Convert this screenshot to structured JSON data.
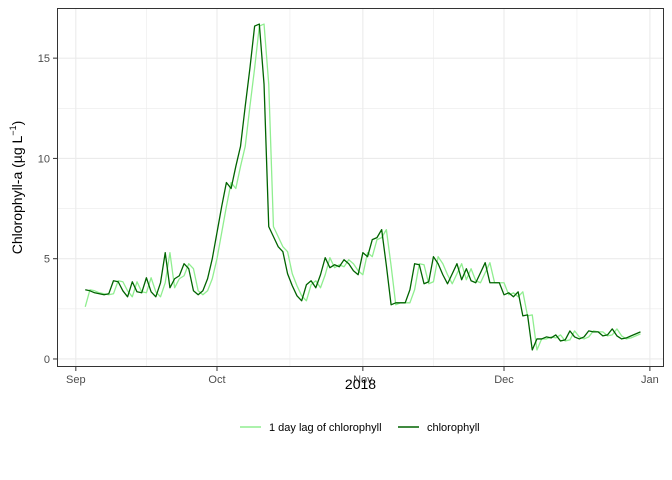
{
  "chart_data": {
    "type": "line",
    "title": "",
    "xlabel": "2018",
    "ylabel": "Chlorophyll-a (µg L",
    "ylabel_sup": "−1",
    "ylabel_close": ")",
    "x_ticks": [
      {
        "date": "2018-09-01",
        "label": "Sep"
      },
      {
        "date": "2018-10-01",
        "label": "Oct"
      },
      {
        "date": "2018-11-01",
        "label": "Nov"
      },
      {
        "date": "2018-12-01",
        "label": "Dec"
      },
      {
        "date": "2019-01-01",
        "label": "Jan"
      }
    ],
    "y_ticks": [
      0,
      5,
      10,
      15
    ],
    "xlim": [
      "2018-08-28",
      "2019-01-04"
    ],
    "ylim": [
      -0.4,
      17.5
    ],
    "grid": true,
    "legend_position": "bottom",
    "series": [
      {
        "name": "1 day lag of chlorophyll",
        "color": "#90ee90",
        "start_date": "2018-09-03",
        "values": [
          2.6,
          3.45,
          3.4,
          3.3,
          3.25,
          3.2,
          3.25,
          3.9,
          3.85,
          3.4,
          3.1,
          3.85,
          3.35,
          3.3,
          4.05,
          3.35,
          3.1,
          3.8,
          5.3,
          3.55,
          4.0,
          4.15,
          4.75,
          4.5,
          3.4,
          3.2,
          3.4,
          4.0,
          5.0,
          6.3,
          7.6,
          8.8,
          8.5,
          9.6,
          10.6,
          12.6,
          14.5,
          16.6,
          16.7,
          13.7,
          6.6,
          6.1,
          5.6,
          5.35,
          4.25,
          3.65,
          3.15,
          2.9,
          3.7,
          3.9,
          3.55,
          4.2,
          5.05,
          4.55,
          4.7,
          4.6,
          4.95,
          4.75,
          4.4,
          4.2,
          5.3,
          5.1,
          5.95,
          6.05,
          6.45,
          4.65,
          2.7,
          2.8,
          2.8,
          2.8,
          3.45,
          4.75,
          4.7,
          3.75,
          3.85,
          5.1,
          4.75,
          4.2,
          3.75,
          4.25,
          4.75,
          3.95,
          4.5,
          3.9,
          3.8,
          4.3,
          4.8,
          3.8,
          3.8,
          3.8,
          3.2,
          3.3,
          3.1,
          3.35,
          2.15,
          2.2,
          0.45,
          1.0,
          1.0,
          1.1,
          1.05,
          1.2,
          0.9,
          0.95,
          1.4,
          1.1,
          1.0,
          1.1,
          1.4,
          1.35,
          1.35,
          1.15,
          1.2,
          1.5,
          1.15,
          1.0,
          1.05,
          1.15,
          1.25
        ]
      },
      {
        "name": "chlorophyll",
        "color": "#006400",
        "start_date": "2018-09-03",
        "values": [
          3.45,
          3.4,
          3.3,
          3.25,
          3.2,
          3.25,
          3.9,
          3.85,
          3.4,
          3.1,
          3.85,
          3.35,
          3.3,
          4.05,
          3.35,
          3.1,
          3.8,
          5.3,
          3.55,
          4.0,
          4.15,
          4.75,
          4.5,
          3.4,
          3.2,
          3.4,
          4.0,
          5.0,
          6.3,
          7.6,
          8.8,
          8.5,
          9.6,
          10.6,
          12.6,
          14.5,
          16.6,
          16.7,
          13.7,
          6.6,
          6.1,
          5.6,
          5.35,
          4.25,
          3.65,
          3.15,
          2.9,
          3.7,
          3.9,
          3.55,
          4.2,
          5.05,
          4.55,
          4.7,
          4.6,
          4.95,
          4.75,
          4.4,
          4.2,
          5.3,
          5.1,
          5.95,
          6.05,
          6.45,
          4.65,
          2.7,
          2.8,
          2.8,
          2.8,
          3.45,
          4.75,
          4.7,
          3.75,
          3.85,
          5.1,
          4.75,
          4.2,
          3.75,
          4.25,
          4.75,
          3.95,
          4.5,
          3.9,
          3.8,
          4.3,
          4.8,
          3.8,
          3.8,
          3.8,
          3.2,
          3.3,
          3.1,
          3.35,
          2.15,
          2.2,
          0.45,
          1.0,
          1.0,
          1.1,
          1.05,
          1.2,
          0.9,
          0.95,
          1.4,
          1.1,
          1.0,
          1.1,
          1.4,
          1.35,
          1.35,
          1.15,
          1.2,
          1.5,
          1.15,
          1.0,
          1.05,
          1.15,
          1.25,
          1.35
        ]
      }
    ]
  }
}
